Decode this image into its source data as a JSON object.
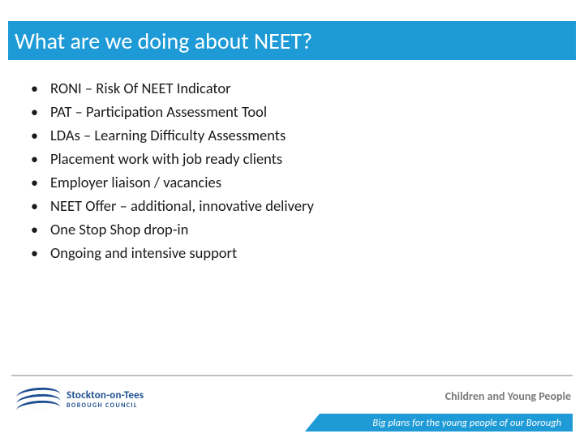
{
  "colors": {
    "brand_blue": "#1e9bd7",
    "text_dark": "#1a1a1a",
    "footer_grey": "#7a7a7a",
    "council_blue": "#1d4f91",
    "white": "#ffffff"
  },
  "title": "What are we doing about NEET?",
  "bullets": [
    "RONI – Risk Of NEET Indicator",
    "PAT – Participation Assessment Tool",
    "LDAs – Learning Difficulty Assessments",
    "Placement work with job ready clients",
    "Employer liaison / vacancies",
    "NEET Offer – additional, innovative delivery",
    "One Stop Shop drop-in",
    "Ongoing and intensive support"
  ],
  "footer": {
    "council_name": "Stockton-on-Tees",
    "council_sub": "BOROUGH COUNCIL",
    "department": "Children and Young People",
    "tagline": "Big plans for the young people of our Borough"
  }
}
